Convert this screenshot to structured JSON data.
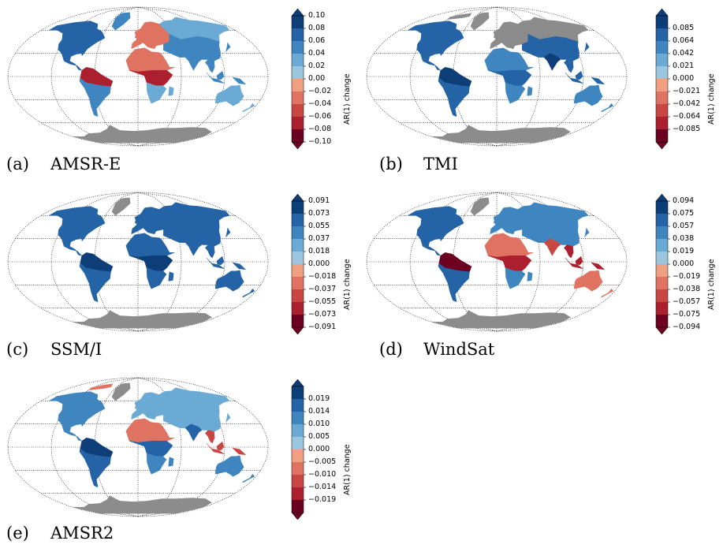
{
  "colors": {
    "pos": [
      "#9ac6e0",
      "#6aaad4",
      "#3f86c0",
      "#2463a6",
      "#0e3e78"
    ],
    "neg": [
      "#f0a081",
      "#e07261",
      "#c94743",
      "#ab1f2e",
      "#6b0020"
    ],
    "missing": "#8c8c8c",
    "outline": "#555555"
  },
  "panels": [
    {
      "letter": "(a)",
      "name": "AMSR-E",
      "cbar_title": "AR(1) change",
      "ticks": [
        "0.10",
        "0.08",
        "0.06",
        "0.04",
        "0.02",
        "0.00",
        "−0.02",
        "−0.04",
        "−0.06",
        "−0.08",
        "−0.10"
      ],
      "tick_mode": "edges",
      "regions": {
        "na": "p3",
        "greenland": "p2",
        "sa_n": "n3",
        "sa_s": "p2",
        "europe": "n1",
        "asia_n": "p1",
        "asia_s": "p2",
        "africa_n": "n1",
        "africa_c": "n3",
        "africa_s": "p1",
        "india": "p2",
        "seasia": "p2",
        "australia": "p1",
        "antarctica": "miss"
      }
    },
    {
      "letter": "(b)",
      "name": "TMI",
      "cbar_title": "AR(1) change",
      "ticks": [
        "0.085",
        "0.064",
        "0.042",
        "0.021",
        "0.000",
        "−0.021",
        "−0.042",
        "−0.064",
        "−0.085"
      ],
      "tick_mode": "inner",
      "regions": {
        "na": "p3",
        "greenland": "miss",
        "sa_n": "p4",
        "sa_s": "p3",
        "europe": "miss",
        "asia_n": "miss",
        "asia_s": "p3",
        "africa_n": "p2",
        "africa_c": "p3",
        "africa_s": "p2",
        "india": "p4",
        "seasia": "p3",
        "australia": "p2",
        "antarctica": "miss",
        "na_north": "miss"
      }
    },
    {
      "letter": "(c)",
      "name": "SSM/I",
      "cbar_title": "AR(1) change",
      "ticks": [
        "0.091",
        "0.073",
        "0.055",
        "0.037",
        "0.018",
        "0.000",
        "−0.018",
        "−0.037",
        "−0.055",
        "−0.073",
        "−0.091"
      ],
      "tick_mode": "edges",
      "regions": {
        "na": "p3",
        "greenland": "miss",
        "sa_n": "p4",
        "sa_s": "p3",
        "europe": "p3",
        "asia_n": "p3",
        "asia_s": "p3",
        "africa_n": "p3",
        "africa_c": "p4",
        "africa_s": "p3",
        "india": "p3",
        "seasia": "p3",
        "australia": "p3",
        "antarctica": "miss"
      }
    },
    {
      "letter": "(d)",
      "name": "WindSat",
      "cbar_title": "AR(1) change",
      "ticks": [
        "0.094",
        "0.075",
        "0.057",
        "0.038",
        "0.019",
        "0.000",
        "−0.019",
        "−0.038",
        "−0.057",
        "−0.075",
        "−0.094"
      ],
      "tick_mode": "edges",
      "regions": {
        "na": "p3",
        "greenland": "miss",
        "sa_n": "n4",
        "sa_s": "p3",
        "europe": "p2",
        "asia_n": "p2",
        "asia_s": "p2",
        "africa_n": "n1",
        "africa_c": "n3",
        "africa_s": "p2",
        "india": "n2",
        "seasia": "n3",
        "australia": "n1",
        "antarctica": "miss"
      }
    },
    {
      "letter": "(e)",
      "name": "AMSR2",
      "cbar_title": "AR(1) change",
      "ticks": [
        "0.019",
        "0.014",
        "0.010",
        "0.005",
        "0.000",
        "−0.005",
        "−0.010",
        "−0.014",
        "−0.019"
      ],
      "tick_mode": "inner",
      "regions": {
        "na": "p2",
        "greenland": "miss",
        "sa_n": "p4",
        "sa_s": "p3",
        "europe": "p1",
        "asia_n": "p1",
        "asia_s": "p1",
        "africa_n": "n1",
        "africa_c": "p3",
        "africa_s": "p2",
        "india": "p3",
        "seasia": "n2",
        "australia": "p2",
        "antarctica": "miss",
        "na_north": "n1"
      }
    }
  ]
}
